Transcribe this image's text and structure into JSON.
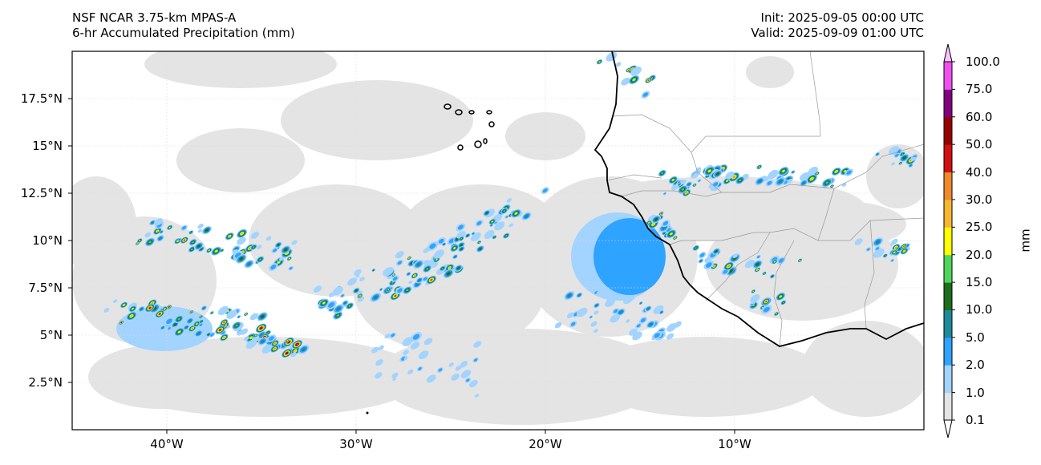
{
  "header": {
    "model": "NSF NCAR 3.75-km MPAS-A",
    "field": "6-hr Accumulated Precipitation (mm)",
    "init": "Init: 2025-09-05 00:00 UTC",
    "valid": "Valid: 2025-09-09 01:00 UTC"
  },
  "map": {
    "lon_range": [
      -45,
      0
    ],
    "lat_range": [
      0,
      20
    ],
    "x_ticks": [
      {
        "value": -40,
        "label": "40°W"
      },
      {
        "value": -30,
        "label": "30°W"
      },
      {
        "value": -20,
        "label": "20°W"
      },
      {
        "value": -10,
        "label": "10°W"
      }
    ],
    "y_ticks": [
      {
        "value": 17.5,
        "label": "17.5°N"
      },
      {
        "value": 15,
        "label": "15°N"
      },
      {
        "value": 12.5,
        "label": "12.5°N"
      },
      {
        "value": 10,
        "label": "10°N"
      },
      {
        "value": 7.5,
        "label": "7.5°N"
      },
      {
        "value": 5,
        "label": "5°N"
      },
      {
        "value": 2.5,
        "label": "2.5°N"
      }
    ]
  },
  "colorbar": {
    "units": "mm",
    "levels": [
      "0.1",
      "1.0",
      "2.0",
      "5.0",
      "10.0",
      "15.0",
      "20.0",
      "25.0",
      "30.0",
      "40.0",
      "50.0",
      "60.0",
      "75.0",
      "100.0"
    ],
    "colors": [
      "#e4e4e4",
      "#a3d3ff",
      "#2ea3ff",
      "#1e8a9c",
      "#1c6e1c",
      "#4fd65a",
      "#ffff00",
      "#f5b630",
      "#ee8a2c",
      "#d11010",
      "#990000",
      "#800080",
      "#f04ff0"
    ],
    "over_color": "#ffc2ff",
    "under_color": "#ffffff"
  }
}
